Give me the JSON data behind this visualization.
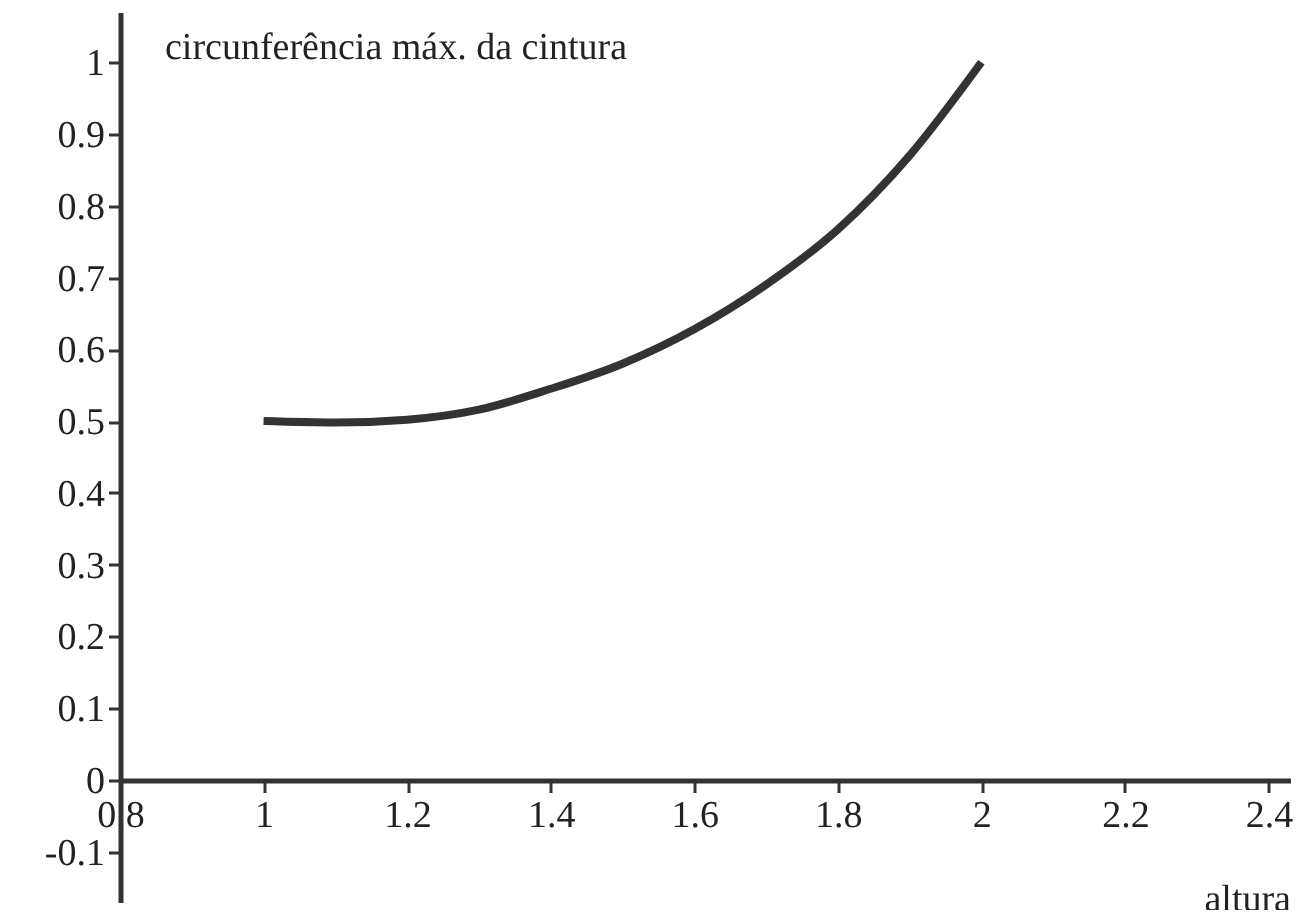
{
  "chart_data": {
    "type": "line",
    "xlabel": "altura",
    "ylabel": "circunferência máx. da cintura",
    "x": [
      1.0,
      1.1,
      1.2,
      1.3,
      1.4,
      1.5,
      1.6,
      1.7,
      1.8,
      1.9,
      2.0
    ],
    "series": [
      {
        "color": "#333333",
        "values": [
          0.5,
          0.498,
          0.502,
          0.516,
          0.545,
          0.58,
          0.628,
          0.69,
          0.767,
          0.87,
          1.0
        ]
      }
    ],
    "xlim": [
      0.8,
      2.43
    ],
    "ylim": [
      -0.17,
      1.07
    ],
    "xticks": [
      0.8,
      1,
      1.2,
      1.4,
      1.6,
      1.8,
      2,
      2.2,
      2.4
    ],
    "yticks": [
      -0.1,
      0,
      0.1,
      0.2,
      0.3,
      0.4,
      0.5,
      0.6,
      0.7,
      0.8,
      0.9,
      1
    ],
    "grid": false,
    "legend": false,
    "marker": "none",
    "line_style": "solid"
  }
}
